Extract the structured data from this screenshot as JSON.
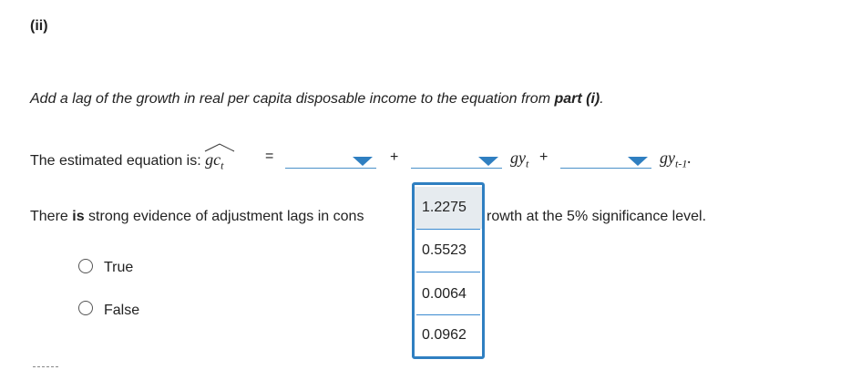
{
  "part_label": "(ii)",
  "instruction": {
    "prefix": "Add a lag of the growth in real per capita disposable income to the equation from ",
    "bold": "part (i)",
    "suffix": "."
  },
  "equation": {
    "label": "The estimated equation is:",
    "lhs": "gc",
    "lhs_sub": "t",
    "equals": "=",
    "plus": "+",
    "term1_var": "gy",
    "term1_sub": "t",
    "term2_var": "gy",
    "term2_sub": "t-1",
    "end": "."
  },
  "statement": {
    "before": "There ",
    "bold": "is",
    "middle": " strong evidence of adjustment lags in cons",
    "after": "rowth at the 5% significance level."
  },
  "options": [
    {
      "label": "True"
    },
    {
      "label": "False"
    }
  ],
  "dropdown_popup": {
    "items": [
      "1.2275",
      "0.5523",
      "0.0064",
      "0.0962"
    ],
    "highlighted_index": 0
  },
  "colors": {
    "accent": "#2f7fc1",
    "text": "#222222",
    "highlight": "#e6ebef"
  }
}
